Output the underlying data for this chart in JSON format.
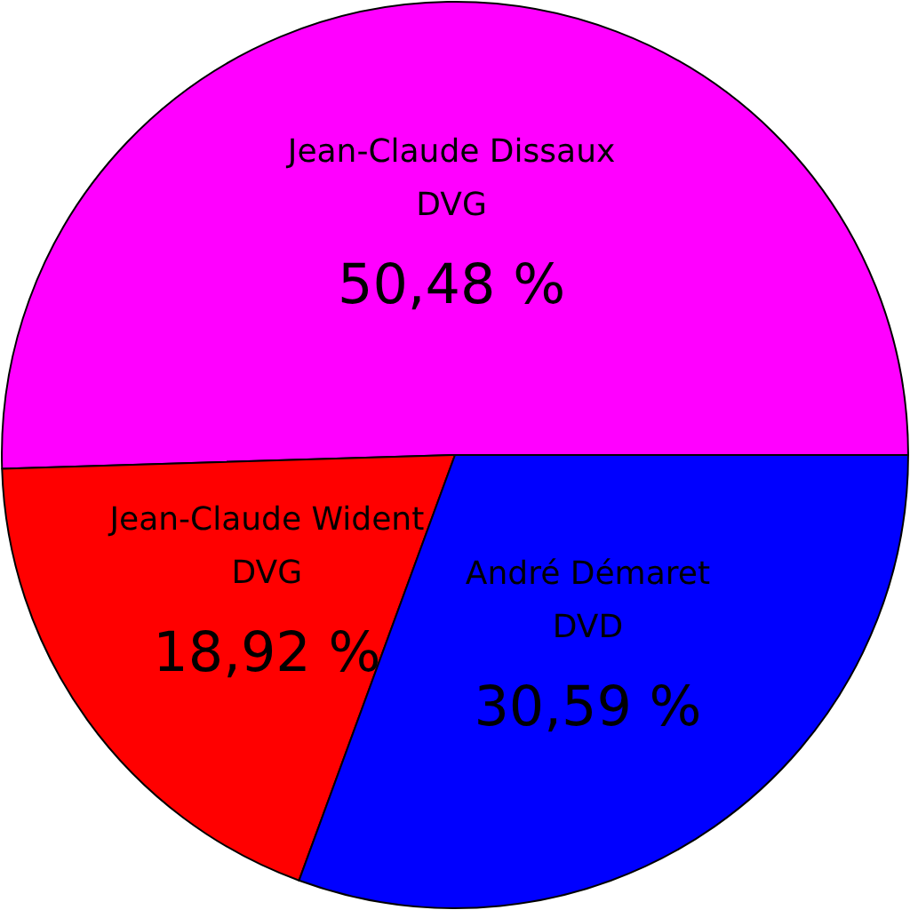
{
  "chart_data": {
    "type": "pie",
    "categories": [
      "Jean-Claude Dissaux\nDVG",
      "Jean-Claude Wident\nDVG",
      "André Démaret\nDVD"
    ],
    "values": [
      50.48,
      18.92,
      30.59
    ],
    "value_labels": [
      "50,48 %",
      "18,92 %",
      "30,59 %"
    ],
    "colors": [
      "#ff00ff",
      "#ff0000",
      "#0000ff"
    ]
  }
}
